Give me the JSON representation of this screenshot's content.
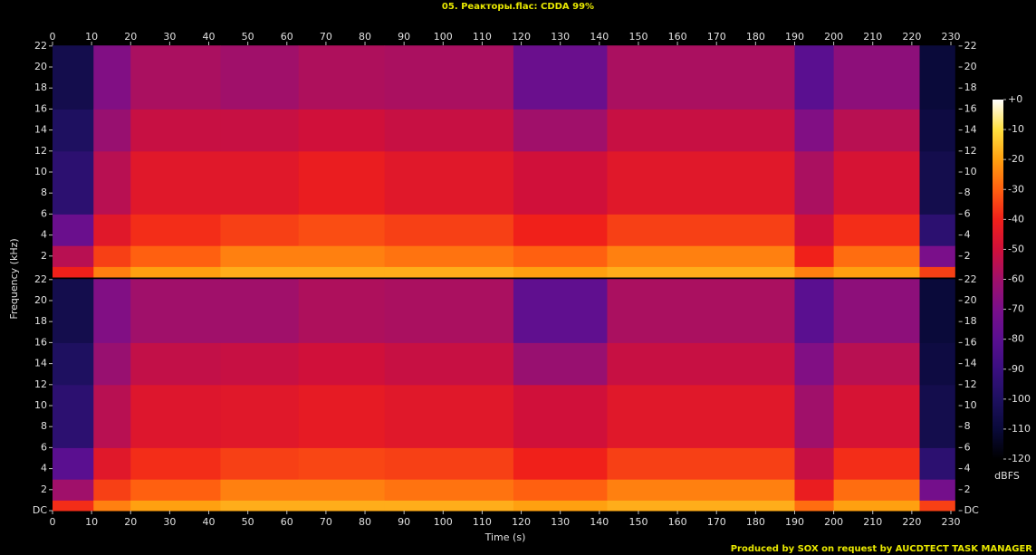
{
  "chart_data": {
    "type": "spectrogram",
    "title": "05. Реакторы.flac: CDDA 99%",
    "x_label": "Time (s)",
    "y_label": "Frequency (kHz)",
    "colorbar_label": "dBFS",
    "footer": "Produced by SOX on request by AUCDTECT TASK MANAGER",
    "xlim": [
      0,
      232
    ],
    "xticks": [
      0,
      10,
      20,
      30,
      40,
      50,
      60,
      70,
      80,
      90,
      100,
      110,
      120,
      130,
      140,
      150,
      160,
      170,
      180,
      190,
      200,
      210,
      220,
      230
    ],
    "time_edges": [
      0,
      10.5,
      20,
      43,
      63,
      85,
      118,
      142,
      190,
      200,
      222,
      231
    ],
    "freq_edges": [
      0,
      1,
      3,
      6,
      12,
      16,
      22.05
    ],
    "colorbar": {
      "lim": [
        -120,
        0
      ],
      "ticks": [
        {
          "value": 0,
          "label": "+0"
        },
        -10,
        -20,
        -30,
        -40,
        -50,
        -60,
        -70,
        -80,
        -90,
        -100,
        -110,
        -120
      ]
    },
    "channels": [
      {
        "ylim": [
          0,
          22.05
        ],
        "yticks": [
          2,
          4,
          6,
          8,
          10,
          12,
          14,
          16,
          18,
          20,
          22
        ],
        "values": [
          [
            -40,
            -55,
            -75,
            -95,
            -100,
            -105
          ],
          [
            -25,
            -35,
            -45,
            -55,
            -62,
            -68
          ],
          [
            -20,
            -30,
            -38,
            -45,
            -52,
            -58
          ],
          [
            -18,
            -25,
            -35,
            -45,
            -52,
            -60
          ],
          [
            -18,
            -25,
            -33,
            -42,
            -50,
            -57
          ],
          [
            -18,
            -27,
            -35,
            -45,
            -52,
            -58
          ],
          [
            -20,
            -30,
            -40,
            -50,
            -60,
            -75
          ],
          [
            -18,
            -25,
            -35,
            -45,
            -52,
            -58
          ],
          [
            -25,
            -40,
            -50,
            -58,
            -68,
            -80
          ],
          [
            -20,
            -28,
            -38,
            -48,
            -55,
            -65
          ],
          [
            -35,
            -70,
            -95,
            -105,
            -108,
            -110
          ]
        ]
      },
      {
        "ylim": [
          0,
          22.05
        ],
        "yticks": [
          {
            "value": 0,
            "label": "DC"
          },
          2,
          4,
          6,
          8,
          10,
          12,
          14,
          16,
          18,
          20,
          22
        ],
        "values": [
          [
            -38,
            -60,
            -80,
            -95,
            -100,
            -105
          ],
          [
            -25,
            -35,
            -45,
            -55,
            -62,
            -68
          ],
          [
            -20,
            -30,
            -38,
            -46,
            -53,
            -60
          ],
          [
            -18,
            -25,
            -35,
            -45,
            -52,
            -60
          ],
          [
            -18,
            -25,
            -34,
            -43,
            -50,
            -57
          ],
          [
            -18,
            -27,
            -35,
            -45,
            -52,
            -58
          ],
          [
            -20,
            -30,
            -40,
            -50,
            -62,
            -78
          ],
          [
            -18,
            -25,
            -35,
            -45,
            -52,
            -58
          ],
          [
            -28,
            -42,
            -52,
            -60,
            -68,
            -80
          ],
          [
            -20,
            -28,
            -38,
            -48,
            -55,
            -65
          ],
          [
            -35,
            -72,
            -95,
            -105,
            -108,
            -110
          ]
        ]
      }
    ]
  }
}
